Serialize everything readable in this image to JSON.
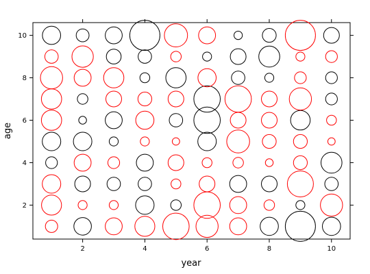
{
  "chart_data": {
    "type": "scatter",
    "title": "",
    "xlabel": "year",
    "ylabel": "age",
    "xlim": [
      0.4,
      10.6
    ],
    "ylim": [
      0.4,
      10.6
    ],
    "xticks": [
      2,
      4,
      6,
      8,
      10
    ],
    "yticks": [
      2,
      4,
      6,
      8,
      10
    ],
    "grid": false,
    "colors": {
      "positive": "#000000",
      "negative": "#ff0000"
    },
    "x": [
      1,
      2,
      3,
      4,
      5,
      6,
      7,
      8,
      9,
      10
    ],
    "y": [
      1,
      2,
      3,
      4,
      5,
      6,
      7,
      8,
      9,
      10
    ],
    "note_columns": "value[row = age-1][col = year-1]; magnitude shown by bubble size, sign by color",
    "values": [
      [
        -0.22,
        0.45,
        -0.42,
        -0.58,
        -1.02,
        -0.72,
        -0.42,
        0.48,
        1.32,
        0.48
      ],
      [
        -0.58,
        -0.12,
        -0.12,
        0.5,
        0.16,
        -1.02,
        -0.42,
        -0.16,
        0.12,
        -0.72
      ],
      [
        -0.5,
        0.36,
        0.26,
        0.26,
        -0.14,
        -0.36,
        0.42,
        0.36,
        -0.98,
        0.26
      ],
      [
        0.2,
        -0.42,
        -0.2,
        0.42,
        -0.36,
        -0.14,
        -0.16,
        -0.09,
        -0.28,
        0.64
      ],
      [
        0.5,
        0.5,
        0.12,
        -0.12,
        -0.08,
        0.5,
        -0.76,
        -0.28,
        -0.28,
        -0.08
      ],
      [
        -0.6,
        0.09,
        0.42,
        -0.48,
        0.26,
        1.02,
        -0.36,
        -0.36,
        0.56,
        -0.14
      ],
      [
        -0.6,
        0.16,
        -0.36,
        -0.28,
        -0.36,
        1.02,
        -1.02,
        -0.36,
        -0.72,
        0.2
      ],
      [
        -0.72,
        -0.42,
        -0.6,
        0.14,
        0.6,
        -0.48,
        0.26,
        0.12,
        -0.2,
        0.2
      ],
      [
        -0.26,
        -0.66,
        0.32,
        0.26,
        -0.16,
        0.12,
        0.36,
        0.64,
        -0.12,
        -0.2
      ],
      [
        0.48,
        0.24,
        0.42,
        1.32,
        -0.78,
        -0.42,
        0.1,
        0.28,
        -1.32,
        0.36
      ]
    ]
  }
}
